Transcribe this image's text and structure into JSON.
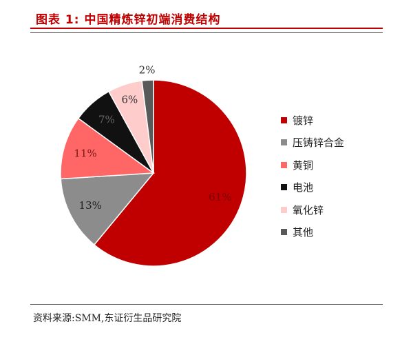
{
  "title": "图表 1:  中国精炼锌初端消费结构",
  "source": "资料来源:SMM,东证衍生品研究院",
  "chart_data": {
    "type": "pie",
    "start_angle_deg": 0,
    "direction": "clockwise",
    "slices": [
      {
        "name": "镀锌",
        "value": 61,
        "label": "61%",
        "color": "#c00000"
      },
      {
        "name": "压铸锌合金",
        "value": 13,
        "label": "13%",
        "color": "#8c8c8c"
      },
      {
        "name": "黄铜",
        "value": 11,
        "label": "11%",
        "color": "#ff6666"
      },
      {
        "name": "电池",
        "value": 7,
        "label": "7%",
        "color": "#111111"
      },
      {
        "name": "氧化锌",
        "value": 6,
        "label": "6%",
        "color": "#ffcccc"
      },
      {
        "name": "其他",
        "value": 2,
        "label": "2%",
        "color": "#595959"
      }
    ],
    "legend_position": "right"
  }
}
